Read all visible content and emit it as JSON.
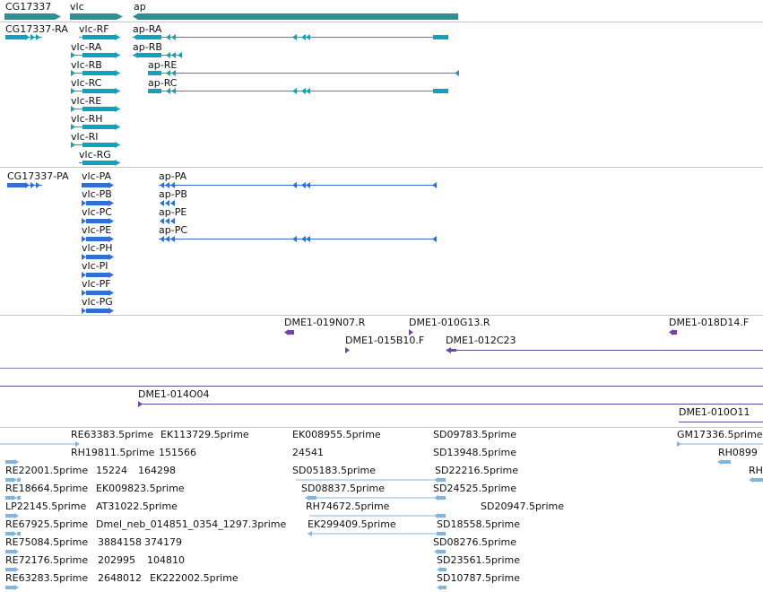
{
  "colors": {
    "gene": "#2f8f93",
    "transcript": "#12a0bf",
    "protein": "#2f6fd6",
    "clone": "#6a4aa6",
    "est": "#7fb5e3",
    "separator": "#c9c9c9"
  },
  "genes": {
    "labels": [
      "CG17337",
      "vlc",
      "ap"
    ]
  },
  "transcripts": {
    "cg17337": "CG17337-RA",
    "vlc": [
      "vlc-RF",
      "vlc-RA",
      "vlc-RB",
      "vlc-RC",
      "vlc-RE",
      "vlc-RH",
      "vlc-RI",
      "vlc-RG"
    ],
    "ap": [
      "ap-RA",
      "ap-RB",
      "ap-RE",
      "ap-RC"
    ]
  },
  "proteins": {
    "cg17337": "CG17337-PA",
    "vlc": [
      "vlc-PA",
      "vlc-PB",
      "vlc-PC",
      "vlc-PE",
      "vlc-PH",
      "vlc-PI",
      "vlc-PF",
      "vlc-PG"
    ],
    "ap": [
      "ap-PA",
      "ap-PB",
      "ap-PE",
      "ap-PC"
    ]
  },
  "clones": {
    "labels": [
      "DME1-019N07.R",
      "DME1-010G13.R",
      "DME1-018D14.F",
      "DME1-015B10.F",
      "DME1-012C23",
      "DME1-014O04",
      "DME1-010O11"
    ]
  },
  "ests": {
    "labels": [
      "RE63383.5prime",
      "EK113729.5prime",
      "EK008955.5prime",
      "SD09783.5prime",
      "GM17336.5prime",
      "RH19811.5prime",
      "151566",
      "24541",
      "SD13948.5prime",
      "RH0899",
      "RE22001.5prime",
      "15224",
      "164298",
      "SD05183.5prime",
      "SD22216.5prime",
      "RH",
      "RE18664.5prime",
      "EK009823.5prime",
      "SD08837.5prime",
      "SD24525.5prime",
      "LP22145.5prime",
      "AT31022.5prime",
      "RH74672.5prime",
      "SD20947.5prime",
      "RE67925.5prime",
      "Dmel_neb_014851_0354_1297.3prime",
      "EK299409.5prime",
      "SD18558.5prime",
      "RE75084.5prime",
      "3884158",
      "374179",
      "SD08276.5prime",
      "RE72176.5prime",
      "202995",
      "104810",
      "SD23561.5prime",
      "RE63283.5prime",
      "2648012",
      "EK222002.5prime",
      "SD10787.5prime"
    ]
  }
}
